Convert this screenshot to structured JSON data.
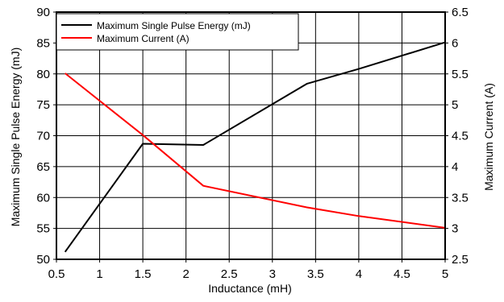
{
  "chart_data": {
    "type": "line",
    "xlabel": "Inductance (mH)",
    "ylabel_left": "Maximum Single Pulse Energy (mJ)",
    "ylabel_right": "Maximum Current (A)",
    "xlim": [
      0.5,
      5
    ],
    "ylim_left": [
      50,
      90
    ],
    "ylim_right": [
      2.5,
      6.5
    ],
    "x_ticks": [
      "0.5",
      "1",
      "1.5",
      "2",
      "2.5",
      "3",
      "3.5",
      "4",
      "4.5",
      "5"
    ],
    "y_left_ticks": [
      "50",
      "55",
      "60",
      "65",
      "70",
      "75",
      "80",
      "85",
      "90"
    ],
    "y_right_ticks": [
      "2.5",
      "3",
      "3.5",
      "4",
      "4.5",
      "5",
      "5.5",
      "6",
      "6.5"
    ],
    "grid": true,
    "legend_position": "top-left",
    "series": [
      {
        "name": "Maximum Single Pulse Energy (mJ)",
        "axis": "left",
        "color": "#000000",
        "x": [
          0.6,
          1.5,
          2.2,
          3.4,
          4,
          5
        ],
        "y": [
          51.2,
          68.7,
          68.5,
          78.4,
          80.8,
          85.1
        ]
      },
      {
        "name": "Maximum Current (A)",
        "axis": "right",
        "color": "#ff0000",
        "x": [
          0.6,
          1.5,
          2.2,
          3.4,
          4,
          5
        ],
        "y": [
          5.51,
          4.51,
          3.69,
          3.34,
          3.2,
          3.01
        ]
      }
    ]
  }
}
